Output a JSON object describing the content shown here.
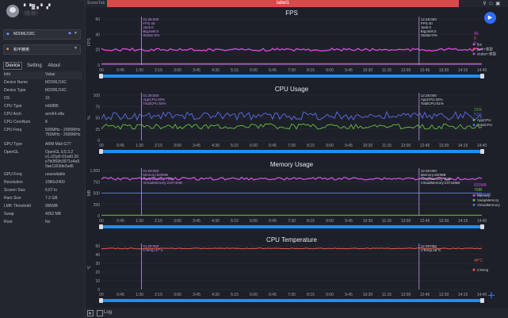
{
  "sidebar": {
    "user_name": "▘▝▓ ▖▘▗▘",
    "user_sub": "░▒░▒░",
    "device_select": "M2006J10C",
    "app_select": "和平精英",
    "tabs": [
      "Device",
      "Setting",
      "About"
    ],
    "table_header": {
      "info": "Info",
      "value": "Value"
    },
    "rows": [
      {
        "k": "Device Name",
        "v": "M2006J10C"
      },
      {
        "k": "Device Type",
        "v": "M2006J10C"
      },
      {
        "k": "OS",
        "v": "10"
      },
      {
        "k": "CPU Type",
        "v": "mt6885"
      },
      {
        "k": "CPU Arch",
        "v": "arm64-v8a"
      },
      {
        "k": "CPU CoreNum",
        "v": "8"
      },
      {
        "k": "CPU Freq",
        "v": "500MHz - 2000MHz 750MHz - 2600MHz"
      },
      {
        "k": "GPU Type",
        "v": "ARM Mali-G77"
      },
      {
        "k": "OpenGL",
        "v": "OpenGL ES 3.2 v1.r21p0-01rel0.26 e7b0f69b3971e4a9 0ae1163de2ad6"
      },
      {
        "k": "GPU Freq",
        "v": "unavailable"
      },
      {
        "k": "Resolution",
        "v": "1080x2400"
      },
      {
        "k": "Screen Size",
        "v": "6.67 in"
      },
      {
        "k": "Ram Size",
        "v": "7.2 GB"
      },
      {
        "k": "LMK Threshold",
        "v": "996MB"
      },
      {
        "k": "Swap",
        "v": "4052 MB"
      },
      {
        "k": "Root",
        "v": "No"
      }
    ]
  },
  "topbar": {
    "scene_tab": "SceneTab",
    "label": "label1"
  },
  "icons": [
    "play-icon",
    "pin-icon",
    "window-icon",
    "fullscreen-icon",
    "plus-icon"
  ],
  "colors": {
    "accent": "#2f6df6",
    "label_bar": "#d84a4a",
    "fps": "#d047d0",
    "jank": "#f05a5a",
    "stutter": "#8b5bd6",
    "app_cpu": "#5fb33c",
    "total_cpu": "#5865d8",
    "memory": "#c24fd0",
    "swap": "#6fba3c",
    "virtual": "#5f6fe0",
    "ctemp": "#e25a4c"
  },
  "x_ticks": [
    "00",
    "0:45",
    "1:30",
    "2:15",
    "3:00",
    "3:45",
    "4:30",
    "5:15",
    "6:00",
    "6:45",
    "7:30",
    "8:15",
    "9:00",
    "9:45",
    "10:30",
    "11:15",
    "12:00",
    "12:45",
    "13:30",
    "14:15",
    "14:40"
  ],
  "panels": {
    "fps": {
      "title": "FPS",
      "ylabel": "FPS",
      "ticks": [
        "60",
        "40",
        "20",
        "0"
      ],
      "cursor1": [
        "01:28:000",
        "FPS:40",
        "Jank:0",
        "BigJank:0",
        "Stutter:0%"
      ],
      "cursor2": [
        "12:28:000",
        "FPS:40",
        "Jank:0",
        "BigJank:0",
        "Stutter:0%"
      ],
      "legend": [
        "fps",
        "jank+类型",
        "stutter+类型"
      ],
      "right_vals": [
        "40",
        "0",
        "0"
      ]
    },
    "cpu": {
      "title": "CPU Usage",
      "ylabel": "%",
      "ticks": [
        "100",
        "75",
        "50",
        "25",
        "0"
      ],
      "cursor1": [
        "01:28:000",
        "AppCPU:30%",
        "TotalCPU:54%"
      ],
      "cursor2": [
        "12:28:000",
        "AppCPU:32%",
        "TotalCPU:51%"
      ],
      "legend": [
        "AppCPU",
        "TotalCPU"
      ],
      "right_vals": [
        "31%",
        "51%"
      ]
    },
    "memory": {
      "title": "Memory Usage",
      "ylabel": "MB",
      "ticks": [
        "1,000",
        "750",
        "500",
        "250",
        "0"
      ],
      "cursor1": [
        "01:28:000",
        "Memory:820MB",
        "SwapMemory:7MB",
        "VirtualMemory:23474MB"
      ],
      "cursor2": [
        "12:28:000",
        "Memory:820MB",
        "SwapMemory:7MB",
        "VirtualMemory:23744MB"
      ],
      "legend": [
        "Memory",
        "SwapMemory",
        "VirtualMemory"
      ],
      "right_vals": [
        "820MB",
        "7MB",
        "23666MB"
      ]
    },
    "temp": {
      "title": "CPU Temperature",
      "ylabel": "℃",
      "ticks": [
        "50",
        "40",
        "30",
        "20",
        "10",
        "0"
      ],
      "cursor1": [
        "01:28:000",
        "CTemp:47°C"
      ],
      "cursor2": [
        "12:28:000",
        "CTemp:48°C"
      ],
      "legend": [
        "CTemp"
      ],
      "right_vals": [
        "48°C"
      ]
    }
  },
  "bottom": {
    "log_label": "Log"
  }
}
